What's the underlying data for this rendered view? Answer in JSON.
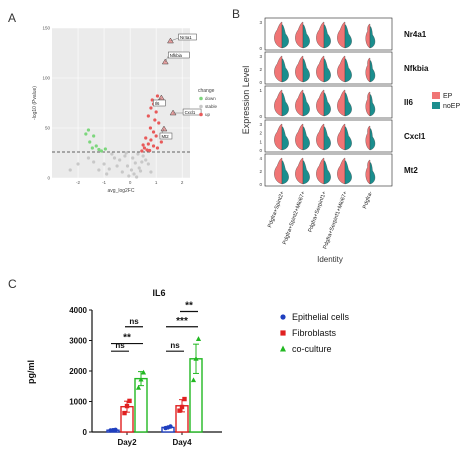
{
  "panels": {
    "a": "A",
    "b": "B",
    "c": "C"
  },
  "chart_data": [
    {
      "panel": "A",
      "type": "scatter",
      "title": "",
      "xlabel": "avg_log2FC",
      "ylabel": "-log10 (Pvalue)",
      "xlim": [
        -3,
        2.3
      ],
      "ylim": [
        0,
        150
      ],
      "y_ticks": [
        "0",
        "50",
        "100",
        "150"
      ],
      "x_ticks": [
        "-2",
        "-1",
        "0",
        "1",
        "2"
      ],
      "threshold_y": 26,
      "legend": {
        "title": "change",
        "entries": [
          "down",
          "stable",
          "up"
        ],
        "colors": [
          "#7dd67d",
          "#c8c8c8",
          "#e85a5a"
        ]
      },
      "labelled_genes": [
        {
          "name": "Nr4a1",
          "x": 1.55,
          "y": 137
        },
        {
          "name": "Nfkbia",
          "x": 1.35,
          "y": 116
        },
        {
          "name": "Il6",
          "x": 1.2,
          "y": 80
        },
        {
          "name": "Cxcl1",
          "x": 1.65,
          "y": 65
        },
        {
          "name": "Mt2",
          "x": 1.3,
          "y": 49
        }
      ],
      "up_points": [
        [
          0.85,
          78
        ],
        [
          0.9,
          74
        ],
        [
          1.05,
          82
        ],
        [
          0.8,
          70
        ],
        [
          1.0,
          66
        ],
        [
          0.7,
          62
        ],
        [
          0.95,
          58
        ],
        [
          1.1,
          55
        ],
        [
          0.78,
          50
        ],
        [
          0.9,
          46
        ],
        [
          1.0,
          42
        ],
        [
          0.6,
          40
        ],
        [
          0.8,
          38
        ],
        [
          0.7,
          34
        ],
        [
          0.9,
          32
        ],
        [
          1.05,
          30
        ],
        [
          0.55,
          30
        ],
        [
          0.65,
          28
        ],
        [
          0.45,
          27
        ],
        [
          0.75,
          27.5
        ],
        [
          1.2,
          36
        ],
        [
          0.5,
          33
        ]
      ],
      "down_points": [
        [
          -1.6,
          48
        ],
        [
          -1.4,
          42
        ],
        [
          -1.55,
          36
        ],
        [
          -1.3,
          32
        ],
        [
          -1.2,
          28.5
        ],
        [
          -1.45,
          30
        ],
        [
          -1.1,
          27
        ],
        [
          -0.95,
          29
        ],
        [
          -1.7,
          44
        ]
      ],
      "stable_points": [
        [
          -0.2,
          22
        ],
        [
          0.1,
          20
        ],
        [
          0.3,
          24
        ],
        [
          -0.4,
          18
        ],
        [
          0.2,
          15
        ],
        [
          -0.1,
          12
        ],
        [
          0.05,
          8
        ],
        [
          0.35,
          10
        ],
        [
          -0.3,
          6
        ],
        [
          0.15,
          4
        ],
        [
          0.45,
          16
        ],
        [
          -0.5,
          12
        ],
        [
          -0.6,
          20
        ],
        [
          -0.8,
          9
        ],
        [
          -1.0,
          14
        ],
        [
          -1.2,
          8
        ],
        [
          -0.9,
          4
        ],
        [
          0.6,
          18
        ],
        [
          0.5,
          22
        ],
        [
          -0.7,
          24
        ],
        [
          -1.4,
          16
        ],
        [
          -1.6,
          20
        ],
        [
          -2.0,
          14
        ],
        [
          -2.3,
          8
        ],
        [
          0.7,
          14
        ],
        [
          0.8,
          6
        ],
        [
          -0.05,
          2
        ],
        [
          0.25,
          1
        ],
        [
          -0.15,
          25
        ],
        [
          0.4,
          7
        ]
      ]
    },
    {
      "panel": "B",
      "type": "violin",
      "ylabel": "Expression Level",
      "xlabel": "Identity",
      "categories": [
        "Pdgfra+Spint2+",
        "Pdgfra+Spint2+Mki67+",
        "Pdgfra+Serpinf1+",
        "Pdgfra+Serpinf1+Mki67+",
        "Pdgfra-"
      ],
      "genes": [
        "Nr4a1",
        "Nfkbia",
        "Il6",
        "Cxcl1",
        "Mt2"
      ],
      "row_ticks": [
        [
          "0",
          "3"
        ],
        [
          "0",
          "2",
          "3"
        ],
        [
          "0",
          "1"
        ],
        [
          "0",
          "1",
          "2",
          "3"
        ],
        [
          "0",
          "2",
          "4"
        ]
      ],
      "legend": [
        {
          "name": "EP",
          "color": "#f07575"
        },
        {
          "name": "noEP",
          "color": "#1b8e8e"
        }
      ]
    },
    {
      "panel": "C",
      "type": "bar",
      "title": "IL6",
      "xlabel": "",
      "ylabel": "pg/ml",
      "categories": [
        "Day2",
        "Day4"
      ],
      "ylim": [
        0,
        4000
      ],
      "y_ticks": [
        0,
        1000,
        2000,
        3000,
        4000
      ],
      "series": [
        {
          "name": "Epithelial cells",
          "color": "#1f3fbf",
          "marker": "circle",
          "values": [
            60,
            150
          ],
          "errors": [
            10,
            20
          ],
          "points": [
            [
              50,
              60,
              70
            ],
            [
              130,
              150,
              180
            ]
          ]
        },
        {
          "name": "Fibroblasts",
          "color": "#e02020",
          "marker": "square",
          "values": [
            830,
            860
          ],
          "errors": [
            180,
            200
          ],
          "points": [
            [
              620,
              850,
              1020
            ],
            [
              700,
              820,
              1080
            ]
          ]
        },
        {
          "name": "co-culture",
          "color": "#22b822",
          "marker": "triangle",
          "values": [
            1750,
            2400
          ],
          "errors": [
            230,
            480
          ],
          "points": [
            [
              1450,
              1720,
              1950
            ],
            [
              1700,
              2400,
              3050
            ]
          ]
        }
      ],
      "significance": [
        {
          "group": 0,
          "from": 0,
          "to": 1,
          "label": "ns",
          "level": 2650
        },
        {
          "group": 0,
          "from": 0,
          "to": 2,
          "label": "**",
          "level": 2900
        },
        {
          "group": 0,
          "from": 1,
          "to": 2,
          "label": "ns",
          "level": 3450
        },
        {
          "group": 1,
          "from": 0,
          "to": 1,
          "label": "ns",
          "level": 2650
        },
        {
          "group": 1,
          "from": 0,
          "to": 2,
          "label": "***",
          "level": 3450
        },
        {
          "group": 1,
          "from": 1,
          "to": 2,
          "label": "**",
          "level": 3950
        }
      ]
    }
  ]
}
